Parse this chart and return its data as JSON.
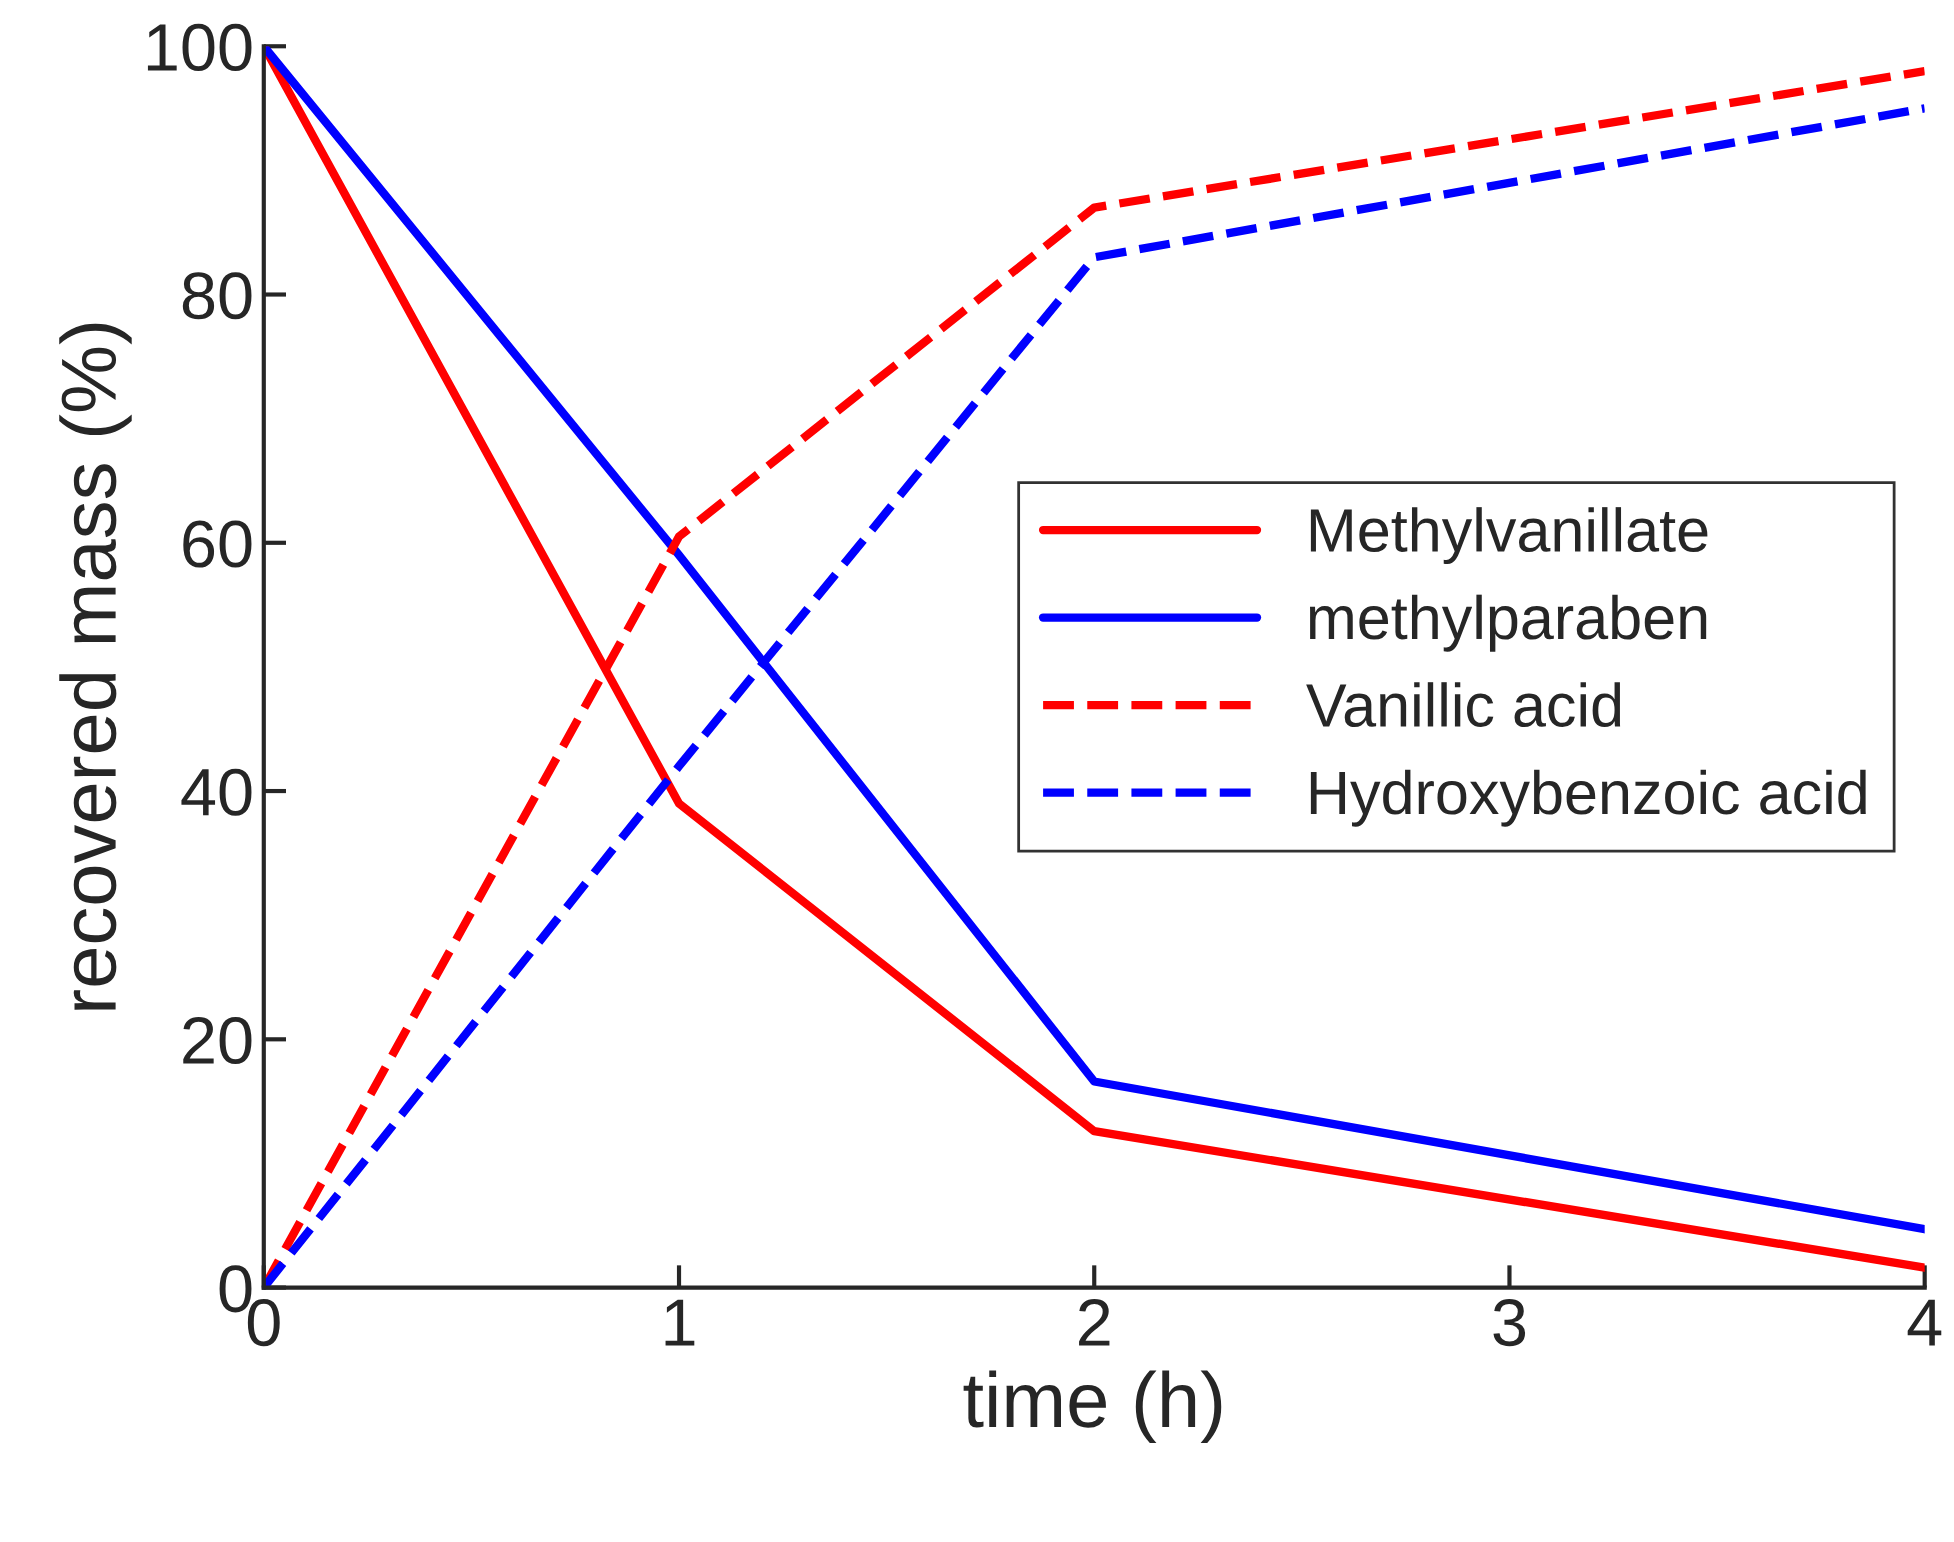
{
  "chart_data": {
    "type": "line",
    "xlabel": "time (h)",
    "ylabel": "recovered mass (%)",
    "x": [
      0,
      1,
      2,
      4
    ],
    "xlim": [
      0,
      4
    ],
    "xticks": [
      0,
      1,
      2,
      3,
      4
    ],
    "ylim": [
      0,
      100
    ],
    "yticks": [
      0,
      20,
      40,
      60,
      80,
      100
    ],
    "grid": false,
    "legend": "center right",
    "marker": "none",
    "series": [
      {
        "name": "Methylvanillate",
        "color": "#ff0000",
        "values": [
          100,
          39,
          12.6,
          1.6
        ],
        "line_style": "solid"
      },
      {
        "name": "methylparaben",
        "color": "#0000ff",
        "values": [
          100,
          59,
          16.6,
          4.7
        ],
        "line_style": "solid"
      },
      {
        "name": "Vanillic acid",
        "color": "#ff0000",
        "values": [
          0,
          60.5,
          87,
          98
        ],
        "line_style": "dashed"
      },
      {
        "name": "Hydroxybenzoic acid",
        "color": "#0000ff",
        "values": [
          0,
          42,
          83,
          95
        ],
        "line_style": "dashed"
      }
    ]
  }
}
